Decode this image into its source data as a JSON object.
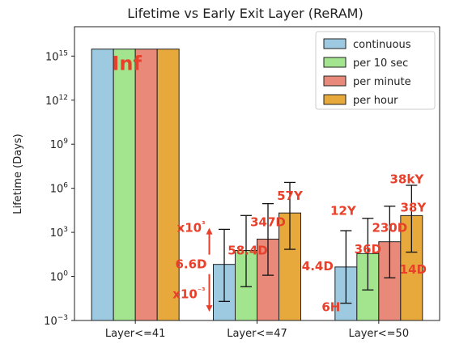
{
  "chart_data": {
    "type": "bar",
    "title": "Lifetime vs Early Exit Layer (ReRAM)",
    "xlabel": "",
    "ylabel": "Lifetime (Days)",
    "yscale": "log",
    "ylim": [
      0.001,
      1e+17
    ],
    "yticks": [
      {
        "value": 0.001,
        "base": "10",
        "exp": "−3"
      },
      {
        "value": 1,
        "base": "10",
        "exp": "0"
      },
      {
        "value": 1000,
        "base": "10",
        "exp": "3"
      },
      {
        "value": 1000000,
        "base": "10",
        "exp": "6"
      },
      {
        "value": 1000000000,
        "base": "10",
        "exp": "9"
      },
      {
        "value": 1000000000000,
        "base": "10",
        "exp": "12"
      },
      {
        "value": 1000000000000000,
        "base": "10",
        "exp": "15"
      }
    ],
    "categories": [
      "Layer<=41",
      "Layer<=47",
      "Layer<=50"
    ],
    "series": [
      {
        "name": "continuous",
        "color": "#9ecae1",
        "values": [
          3000000000000000.0,
          6.6,
          4.4
        ],
        "err_low": [
          null,
          0.02,
          0.015
        ],
        "err_high": [
          null,
          1600,
          1300
        ]
      },
      {
        "name": "per 10 sec",
        "color": "#a3e48f",
        "values": [
          3000000000000000.0,
          58.4,
          36
        ],
        "err_low": [
          null,
          0.2,
          0.12
        ],
        "err_high": [
          null,
          14000,
          9000
        ]
      },
      {
        "name": "per minute",
        "color": "#e8897a",
        "values": [
          3000000000000000.0,
          347,
          230
        ],
        "err_low": [
          null,
          1.2,
          0.8
        ],
        "err_high": [
          null,
          90000,
          60000
        ]
      },
      {
        "name": "per hour",
        "color": "#e8a93c",
        "values": [
          3000000000000000.0,
          20800,
          13870
        ],
        "err_low": [
          null,
          70,
          45
        ],
        "err_high": [
          null,
          2500000,
          1600000
        ]
      }
    ],
    "inf_label": "Inf",
    "annotations": [
      {
        "text": "x10³",
        "pos": [
          1,
          2000
        ],
        "anchor": "end"
      },
      {
        "text": "58.4D",
        "pos": [
          1,
          60
        ],
        "anchor": "middle"
      },
      {
        "text": "347D",
        "pos": [
          1,
          5000
        ],
        "anchor": "middle"
      },
      {
        "text": "57Y",
        "pos": [
          1,
          300000
        ],
        "anchor": "middle"
      },
      {
        "text": "6.6D",
        "pos": [
          1,
          6.6
        ],
        "anchor": "end"
      },
      {
        "text": "x10⁻³",
        "pos": [
          1,
          0.06
        ],
        "anchor": "end"
      },
      {
        "text": "12Y",
        "pos": [
          2,
          30000
        ],
        "anchor": "middle"
      },
      {
        "text": "36D",
        "pos": [
          2,
          70
        ],
        "anchor": "middle"
      },
      {
        "text": "230D",
        "pos": [
          2,
          2000
        ],
        "anchor": "middle"
      },
      {
        "text": "38kY",
        "pos": [
          2,
          4000000
        ],
        "anchor": "middle"
      },
      {
        "text": "38Y",
        "pos": [
          2,
          50000
        ],
        "anchor": "middle"
      },
      {
        "text": "4.4D",
        "pos": [
          2,
          5
        ],
        "anchor": "end"
      },
      {
        "text": "14D",
        "pos": [
          2,
          3
        ],
        "anchor": "middle"
      },
      {
        "text": "6H",
        "pos": [
          2,
          0.008
        ],
        "anchor": "middle"
      }
    ],
    "annotation_color": "#e8402a",
    "legend_position": "top-right",
    "grid": false
  }
}
